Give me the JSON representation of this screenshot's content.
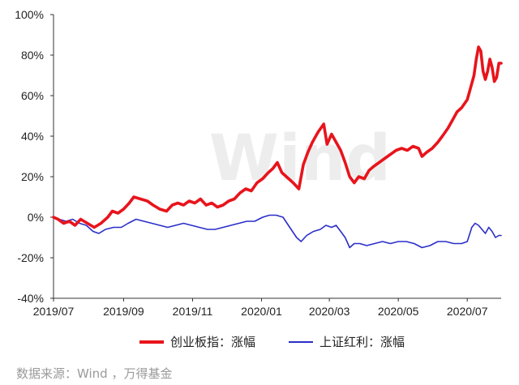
{
  "chart_data": {
    "type": "line",
    "title": "",
    "xlabel": "",
    "ylabel": "",
    "ylim": [
      -40,
      100
    ],
    "y_ticks": [
      "100%",
      "80%",
      "60%",
      "40%",
      "20%",
      "0%",
      "-20%",
      "-40%"
    ],
    "y_tick_values": [
      100,
      80,
      60,
      40,
      20,
      0,
      -20,
      -40
    ],
    "x_range": [
      "2019-07-01",
      "2020-07-31"
    ],
    "x_ticks": [
      "2019/07",
      "2019/09",
      "2019/11",
      "2020/01",
      "2020/03",
      "2020/05",
      "2020/07"
    ],
    "x_tick_dates": [
      "2019-07-01",
      "2019-09-01",
      "2019-11-01",
      "2020-01-01",
      "2020-03-01",
      "2020-05-01",
      "2020-07-01"
    ],
    "grid": false,
    "legend_position": "bottom",
    "watermark": "Wind",
    "series": [
      {
        "name": "创业板指：涨幅",
        "color": "#e8141c",
        "points": [
          [
            "2019-07-01",
            0
          ],
          [
            "2019-07-05",
            -1
          ],
          [
            "2019-07-10",
            -3
          ],
          [
            "2019-07-15",
            -2
          ],
          [
            "2019-07-20",
            -4
          ],
          [
            "2019-07-25",
            -1
          ],
          [
            "2019-07-31",
            -3
          ],
          [
            "2019-08-06",
            -5
          ],
          [
            "2019-08-12",
            -3
          ],
          [
            "2019-08-18",
            0
          ],
          [
            "2019-08-22",
            3
          ],
          [
            "2019-08-27",
            2
          ],
          [
            "2019-09-01",
            4
          ],
          [
            "2019-09-06",
            7
          ],
          [
            "2019-09-10",
            10
          ],
          [
            "2019-09-16",
            9
          ],
          [
            "2019-09-22",
            8
          ],
          [
            "2019-09-27",
            6
          ],
          [
            "2019-10-03",
            4
          ],
          [
            "2019-10-09",
            3
          ],
          [
            "2019-10-14",
            6
          ],
          [
            "2019-10-19",
            7
          ],
          [
            "2019-10-24",
            6
          ],
          [
            "2019-10-29",
            8
          ],
          [
            "2019-11-03",
            7
          ],
          [
            "2019-11-08",
            9
          ],
          [
            "2019-11-13",
            6
          ],
          [
            "2019-11-18",
            7
          ],
          [
            "2019-11-23",
            5
          ],
          [
            "2019-11-28",
            6
          ],
          [
            "2019-12-03",
            8
          ],
          [
            "2019-12-08",
            9
          ],
          [
            "2019-12-13",
            12
          ],
          [
            "2019-12-18",
            14
          ],
          [
            "2019-12-23",
            13
          ],
          [
            "2019-12-28",
            17
          ],
          [
            "2020-01-02",
            19
          ],
          [
            "2020-01-07",
            22
          ],
          [
            "2020-01-11",
            24
          ],
          [
            "2020-01-15",
            27
          ],
          [
            "2020-01-19",
            22
          ],
          [
            "2020-01-23",
            20
          ],
          [
            "2020-01-29",
            17
          ],
          [
            "2020-02-03",
            14
          ],
          [
            "2020-02-07",
            26
          ],
          [
            "2020-02-11",
            32
          ],
          [
            "2020-02-15",
            37
          ],
          [
            "2020-02-20",
            42
          ],
          [
            "2020-02-25",
            46
          ],
          [
            "2020-02-28",
            36
          ],
          [
            "2020-03-03",
            41
          ],
          [
            "2020-03-07",
            37
          ],
          [
            "2020-03-11",
            33
          ],
          [
            "2020-03-15",
            27
          ],
          [
            "2020-03-19",
            20
          ],
          [
            "2020-03-23",
            17
          ],
          [
            "2020-03-27",
            20
          ],
          [
            "2020-04-01",
            19
          ],
          [
            "2020-04-05",
            23
          ],
          [
            "2020-04-09",
            25
          ],
          [
            "2020-04-14",
            27
          ],
          [
            "2020-04-19",
            29
          ],
          [
            "2020-04-24",
            31
          ],
          [
            "2020-04-29",
            33
          ],
          [
            "2020-05-04",
            34
          ],
          [
            "2020-05-09",
            33
          ],
          [
            "2020-05-14",
            35
          ],
          [
            "2020-05-19",
            34
          ],
          [
            "2020-05-22",
            30
          ],
          [
            "2020-05-26",
            32
          ],
          [
            "2020-05-31",
            34
          ],
          [
            "2020-06-05",
            37
          ],
          [
            "2020-06-09",
            40
          ],
          [
            "2020-06-14",
            44
          ],
          [
            "2020-06-18",
            48
          ],
          [
            "2020-06-22",
            52
          ],
          [
            "2020-06-26",
            54
          ],
          [
            "2020-07-01",
            58
          ],
          [
            "2020-07-04",
            64
          ],
          [
            "2020-07-07",
            70
          ],
          [
            "2020-07-09",
            78
          ],
          [
            "2020-07-11",
            84
          ],
          [
            "2020-07-13",
            82
          ],
          [
            "2020-07-15",
            72
          ],
          [
            "2020-07-17",
            68
          ],
          [
            "2020-07-19",
            72
          ],
          [
            "2020-07-21",
            78
          ],
          [
            "2020-07-23",
            74
          ],
          [
            "2020-07-25",
            67
          ],
          [
            "2020-07-27",
            69
          ],
          [
            "2020-07-29",
            76
          ],
          [
            "2020-07-31",
            76
          ]
        ]
      },
      {
        "name": "上证红利：涨幅",
        "color": "#2a2ec8",
        "points": [
          [
            "2019-07-01",
            0
          ],
          [
            "2019-07-06",
            -1
          ],
          [
            "2019-07-12",
            -2
          ],
          [
            "2019-07-18",
            -1
          ],
          [
            "2019-07-24",
            -3
          ],
          [
            "2019-07-30",
            -4
          ],
          [
            "2019-08-05",
            -7
          ],
          [
            "2019-08-10",
            -8
          ],
          [
            "2019-08-16",
            -6
          ],
          [
            "2019-08-23",
            -5
          ],
          [
            "2019-08-30",
            -5
          ],
          [
            "2019-09-05",
            -3
          ],
          [
            "2019-09-12",
            -1
          ],
          [
            "2019-09-19",
            -2
          ],
          [
            "2019-09-26",
            -3
          ],
          [
            "2019-10-03",
            -4
          ],
          [
            "2019-10-10",
            -5
          ],
          [
            "2019-10-17",
            -4
          ],
          [
            "2019-10-24",
            -3
          ],
          [
            "2019-10-31",
            -4
          ],
          [
            "2019-11-07",
            -5
          ],
          [
            "2019-11-14",
            -6
          ],
          [
            "2019-11-21",
            -6
          ],
          [
            "2019-11-28",
            -5
          ],
          [
            "2019-12-05",
            -4
          ],
          [
            "2019-12-12",
            -3
          ],
          [
            "2019-12-19",
            -2
          ],
          [
            "2019-12-26",
            -2
          ],
          [
            "2020-01-02",
            0
          ],
          [
            "2020-01-08",
            1
          ],
          [
            "2020-01-14",
            1
          ],
          [
            "2020-01-20",
            0
          ],
          [
            "2020-01-26",
            -5
          ],
          [
            "2020-02-01",
            -10
          ],
          [
            "2020-02-05",
            -12
          ],
          [
            "2020-02-10",
            -9
          ],
          [
            "2020-02-16",
            -7
          ],
          [
            "2020-02-22",
            -6
          ],
          [
            "2020-02-27",
            -4
          ],
          [
            "2020-03-03",
            -5
          ],
          [
            "2020-03-07",
            -4
          ],
          [
            "2020-03-11",
            -7
          ],
          [
            "2020-03-15",
            -10
          ],
          [
            "2020-03-19",
            -15
          ],
          [
            "2020-03-23",
            -13
          ],
          [
            "2020-03-28",
            -13
          ],
          [
            "2020-04-03",
            -14
          ],
          [
            "2020-04-10",
            -13
          ],
          [
            "2020-04-17",
            -12
          ],
          [
            "2020-04-24",
            -13
          ],
          [
            "2020-05-01",
            -12
          ],
          [
            "2020-05-08",
            -12
          ],
          [
            "2020-05-15",
            -13
          ],
          [
            "2020-05-22",
            -15
          ],
          [
            "2020-05-29",
            -14
          ],
          [
            "2020-06-05",
            -12
          ],
          [
            "2020-06-12",
            -12
          ],
          [
            "2020-06-19",
            -13
          ],
          [
            "2020-06-26",
            -13
          ],
          [
            "2020-07-01",
            -12
          ],
          [
            "2020-07-05",
            -5
          ],
          [
            "2020-07-08",
            -3
          ],
          [
            "2020-07-11",
            -4
          ],
          [
            "2020-07-14",
            -6
          ],
          [
            "2020-07-17",
            -8
          ],
          [
            "2020-07-20",
            -5
          ],
          [
            "2020-07-23",
            -7
          ],
          [
            "2020-07-26",
            -10
          ],
          [
            "2020-07-29",
            -9
          ],
          [
            "2020-07-31",
            -9
          ]
        ]
      }
    ]
  },
  "source_note": "数据来源：Wind ，万得基金"
}
